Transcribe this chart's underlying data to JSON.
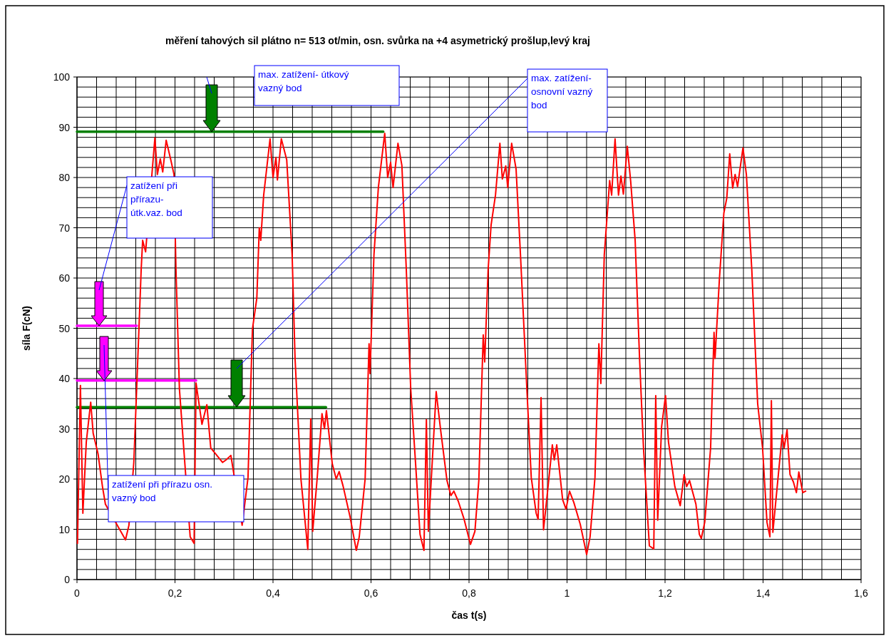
{
  "chart_data": {
    "type": "line",
    "title": "měření tahových sil plátno n= 513 ot/min, osn. svůrka na +4 asymetrický prošlup,levý kraj",
    "xlabel": "čas t(s)",
    "ylabel": "síla F(cN)",
    "xlim": [
      0,
      1.6
    ],
    "ylim": [
      0,
      100
    ],
    "xticks": [
      0,
      {
        "value": 0.04,
        "label": null
      },
      {
        "value": 0.08,
        "label": null
      },
      {
        "value": 0.12,
        "label": null
      },
      {
        "value": 0.16,
        "label": null
      },
      {
        "value": 0.2,
        "label": "0,2"
      },
      {
        "value": 0.24,
        "label": null
      },
      {
        "value": 0.28,
        "label": null
      },
      {
        "value": 0.32,
        "label": null
      },
      {
        "value": 0.36,
        "label": null
      },
      {
        "value": 0.4,
        "label": "0,4"
      },
      {
        "value": 0.44,
        "label": null
      },
      {
        "value": 0.48,
        "label": null
      },
      {
        "value": 0.52,
        "label": null
      },
      {
        "value": 0.56,
        "label": null
      },
      {
        "value": 0.6,
        "label": "0,6"
      },
      {
        "value": 0.64,
        "label": null
      },
      {
        "value": 0.68,
        "label": null
      },
      {
        "value": 0.72,
        "label": null
      },
      {
        "value": 0.76,
        "label": null
      },
      {
        "value": 0.8,
        "label": "0,8"
      },
      {
        "value": 0.84,
        "label": null
      },
      {
        "value": 0.88,
        "label": null
      },
      {
        "value": 0.92,
        "label": null
      },
      {
        "value": 0.96,
        "label": null
      },
      1,
      {
        "value": 1.04,
        "label": null
      },
      {
        "value": 1.08,
        "label": null
      },
      {
        "value": 1.12,
        "label": null
      },
      {
        "value": 1.16,
        "label": null
      },
      {
        "value": 1.2,
        "label": "1,2"
      },
      {
        "value": 1.24,
        "label": null
      },
      {
        "value": 1.28,
        "label": null
      },
      {
        "value": 1.32,
        "label": null
      },
      {
        "value": 1.36,
        "label": null
      },
      {
        "value": 1.4,
        "label": "1,4"
      },
      {
        "value": 1.44,
        "label": null
      },
      {
        "value": 1.48,
        "label": null
      },
      {
        "value": 1.52,
        "label": null
      },
      {
        "value": 1.56,
        "label": null
      },
      {
        "value": 1.6,
        "label": "1,6"
      }
    ],
    "yticks": [
      0,
      {
        "value": 2,
        "label": null
      },
      {
        "value": 4,
        "label": null
      },
      {
        "value": 6,
        "label": null
      },
      {
        "value": 8,
        "label": null
      },
      10,
      {
        "value": 12,
        "label": null
      },
      {
        "value": 14,
        "label": null
      },
      {
        "value": 16,
        "label": null
      },
      {
        "value": 18,
        "label": null
      },
      20,
      {
        "value": 22,
        "label": null
      },
      {
        "value": 24,
        "label": null
      },
      {
        "value": 26,
        "label": null
      },
      {
        "value": 28,
        "label": null
      },
      30,
      {
        "value": 32,
        "label": null
      },
      {
        "value": 34,
        "label": null
      },
      {
        "value": 36,
        "label": null
      },
      {
        "value": 38,
        "label": null
      },
      40,
      {
        "value": 42,
        "label": null
      },
      {
        "value": 44,
        "label": null
      },
      {
        "value": 46,
        "label": null
      },
      {
        "value": 48,
        "label": null
      },
      50,
      {
        "value": 52,
        "label": null
      },
      {
        "value": 54,
        "label": null
      },
      {
        "value": 56,
        "label": null
      },
      {
        "value": 58,
        "label": null
      },
      60,
      {
        "value": 62,
        "label": null
      },
      {
        "value": 64,
        "label": null
      },
      {
        "value": 66,
        "label": null
      },
      {
        "value": 68,
        "label": null
      },
      70,
      {
        "value": 72,
        "label": null
      },
      {
        "value": 74,
        "label": null
      },
      {
        "value": 76,
        "label": null
      },
      {
        "value": 78,
        "label": null
      },
      80,
      {
        "value": 82,
        "label": null
      },
      {
        "value": 84,
        "label": null
      },
      {
        "value": 86,
        "label": null
      },
      {
        "value": 88,
        "label": null
      },
      90,
      {
        "value": 92,
        "label": null
      },
      {
        "value": 94,
        "label": null
      },
      {
        "value": 96,
        "label": null
      },
      {
        "value": 98,
        "label": null
      },
      100
    ],
    "grid": true,
    "marker": "none",
    "line_style": "solid",
    "series": [
      {
        "color": "#ff0000",
        "x": [
          0.001,
          0.007,
          0.012,
          0.019,
          0.028,
          0.033,
          0.043,
          0.052,
          0.058,
          0.099,
          0.106,
          0.116,
          0.125,
          0.131,
          0.134,
          0.14,
          0.159,
          0.164,
          0.17,
          0.175,
          0.182,
          0.191,
          0.198,
          0.202,
          0.209,
          0.231,
          0.239,
          0.243,
          0.255,
          0.265,
          0.273,
          0.297,
          0.304,
          0.314,
          0.337,
          0.349,
          0.358,
          0.367,
          0.372,
          0.375,
          0.381,
          0.394,
          0.4,
          0.406,
          0.409,
          0.417,
          0.428,
          0.439,
          0.445,
          0.457,
          0.471,
          0.477,
          0.481,
          0.49,
          0.5,
          0.505,
          0.509,
          0.521,
          0.529,
          0.535,
          0.543,
          0.557,
          0.57,
          0.576,
          0.588,
          0.596,
          0.598,
          0.606,
          0.615,
          0.628,
          0.634,
          0.64,
          0.645,
          0.655,
          0.663,
          0.672,
          0.681,
          0.691,
          0.7,
          0.708,
          0.713,
          0.717,
          0.733,
          0.742,
          0.755,
          0.763,
          0.769,
          0.778,
          0.79,
          0.803,
          0.812,
          0.82,
          0.829,
          0.832,
          0.839,
          0.845,
          0.854,
          0.863,
          0.868,
          0.875,
          0.879,
          0.887,
          0.896,
          0.905,
          0.918,
          0.927,
          0.937,
          0.941,
          0.947,
          0.952,
          0.96,
          0.97,
          0.974,
          0.979,
          0.991,
          0.998,
          1.005,
          1.014,
          1.027,
          1.04,
          1.047,
          1.057,
          1.065,
          1.069,
          1.076,
          1.087,
          1.091,
          1.098,
          1.105,
          1.11,
          1.115,
          1.123,
          1.13,
          1.139,
          1.148,
          1.156,
          1.168,
          1.177,
          1.181,
          1.185,
          1.193,
          1.201,
          1.207,
          1.22,
          1.231,
          1.239,
          1.244,
          1.25,
          1.263,
          1.27,
          1.274,
          1.281,
          1.293,
          1.3,
          1.302,
          1.311,
          1.32,
          1.326,
          1.332,
          1.338,
          1.343,
          1.348,
          1.359,
          1.366,
          1.377,
          1.389,
          1.399,
          1.408,
          1.414,
          1.417,
          1.42,
          1.428,
          1.439,
          1.443,
          1.449,
          1.455,
          1.462,
          1.468,
          1.473,
          1.481,
          1.487
        ],
        "values": [
          7.2,
          38.6,
          13.2,
          27.4,
          35.3,
          29.1,
          25,
          18.5,
          15,
          7.9,
          10.8,
          23.3,
          46.2,
          61.7,
          67.5,
          65.2,
          87.9,
          80.6,
          83.7,
          81.1,
          87.4,
          83.7,
          80.6,
          61.7,
          38,
          8.5,
          7.2,
          39.1,
          30.9,
          34.8,
          26.2,
          23.3,
          23.8,
          24.7,
          10.8,
          20.3,
          49.8,
          56,
          70,
          67.5,
          76.5,
          87.7,
          80,
          84,
          79.5,
          87.7,
          83.5,
          64.7,
          44,
          20,
          6,
          32,
          9.6,
          20,
          33,
          30,
          33.6,
          23,
          20,
          21.5,
          18.6,
          12.6,
          5.8,
          8.5,
          20,
          46.9,
          41,
          64.6,
          78,
          88.8,
          80,
          83,
          78,
          86.8,
          82.4,
          61.7,
          38,
          23,
          9,
          5.8,
          31.8,
          9.6,
          37.4,
          29.8,
          19.7,
          16.7,
          17.6,
          15.6,
          12,
          7,
          9.6,
          19.7,
          48.7,
          43.3,
          61.7,
          70.5,
          76.5,
          86.8,
          79.7,
          82.3,
          78,
          86.8,
          81.7,
          64.6,
          38,
          20.3,
          13.2,
          12,
          36.2,
          9.9,
          17.3,
          26.8,
          23.8,
          26.8,
          15.9,
          14,
          17.6,
          15.3,
          11,
          5,
          8.5,
          20.3,
          46.9,
          39,
          64.6,
          79.4,
          76.5,
          87.7,
          76.5,
          80.3,
          76.7,
          86.2,
          79.1,
          67.5,
          44,
          26.2,
          6.7,
          6.1,
          36.6,
          11.8,
          30.4,
          36.6,
          27.4,
          18.5,
          14.7,
          20.9,
          18.5,
          19.7,
          15,
          9,
          8.2,
          11.4,
          26.2,
          49.2,
          44,
          59.9,
          72.9,
          75.9,
          84.7,
          77.9,
          80.6,
          78.2,
          85.9,
          80.6,
          61.7,
          35,
          26.2,
          11.4,
          8.5,
          35.6,
          9.4,
          17.6,
          28.8,
          26.2,
          29.8,
          20.9,
          19.4,
          17.3,
          21.4,
          17.3,
          17.6
        ]
      },
      {
        "color": "#008000",
        "x": [
          0,
          0.625
        ],
        "values": [
          89.1,
          89.1
        ]
      },
      {
        "color": "#008000",
        "x": [
          0,
          0.508
        ],
        "values": [
          34.3,
          34.3
        ]
      },
      {
        "color": "#ff00ff",
        "x": [
          0,
          0.122
        ],
        "values": [
          50.5,
          50.5
        ]
      },
      {
        "color": "#ff00ff",
        "x": [
          0,
          0.243
        ],
        "values": [
          39.6,
          39.6
        ]
      }
    ],
    "annotations": [
      "max. zatížení- útkový\nvazný bod",
      "max. zatížení-\nosnovní vazný\nbod",
      "zatížení při\npřírazu-\nútk.vaz. bod",
      "zatížení při přírazu osn.\nvazný bod"
    ]
  }
}
